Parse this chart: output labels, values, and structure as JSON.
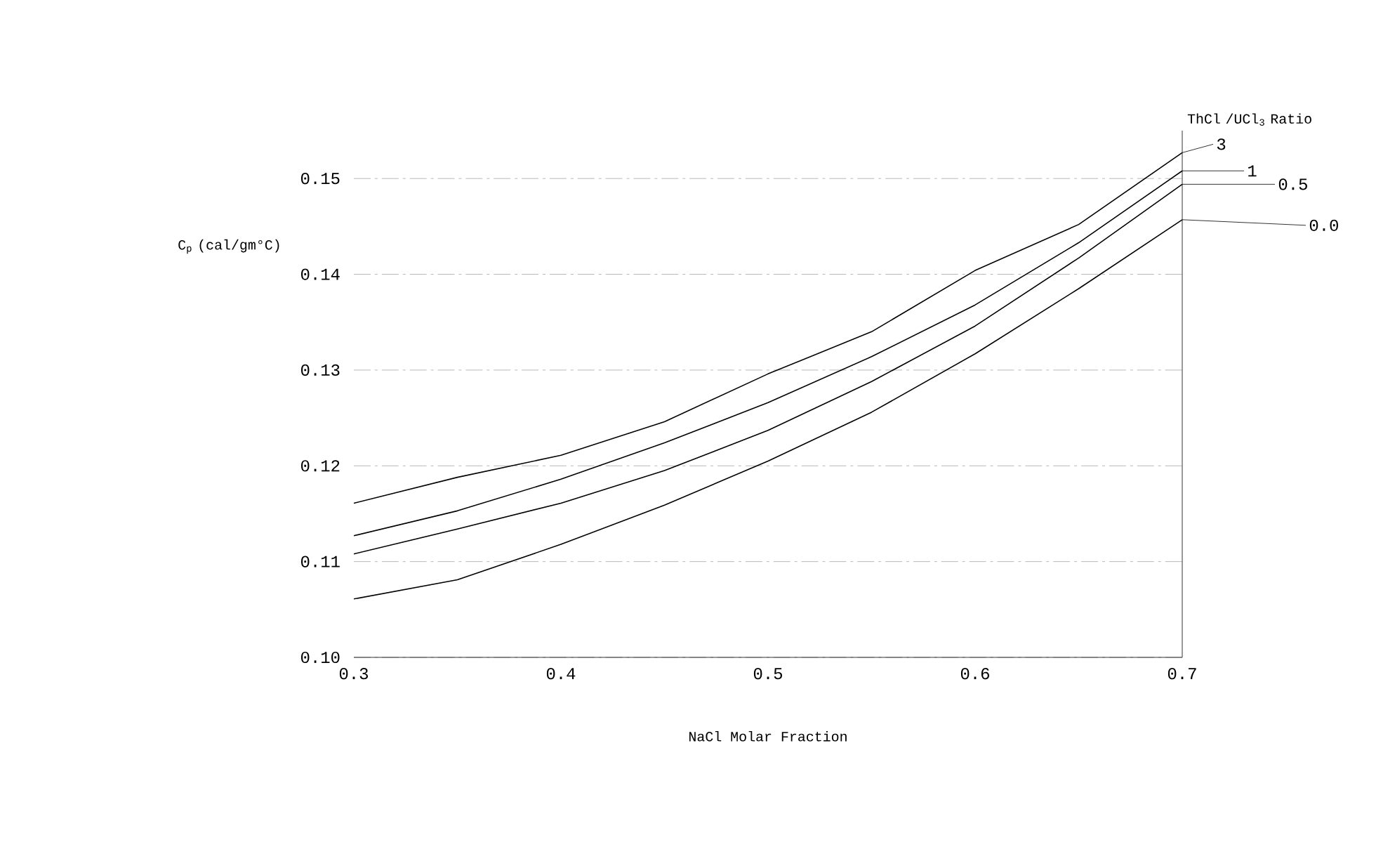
{
  "chart_data": {
    "type": "line",
    "xlabel": "NaCl Molar Fraction",
    "ylabel": "C$_{p}$ (cal/gm°C)",
    "legend_title": "ThCl /UCl$_{3}$ Ratio",
    "x": [
      0.3,
      0.35,
      0.4,
      0.45,
      0.5,
      0.55,
      0.6,
      0.65,
      0.7
    ],
    "series": [
      {
        "name": "3",
        "color": "#000000",
        "values": [
          0.1161,
          0.1188,
          0.1211,
          0.1246,
          0.1296,
          0.134,
          0.1404,
          0.1452,
          0.1527
        ]
      },
      {
        "name": "1",
        "color": "#000000",
        "values": [
          0.1127,
          0.1153,
          0.1186,
          0.1224,
          0.1266,
          0.1314,
          0.1368,
          0.1433,
          0.1508
        ]
      },
      {
        "name": "0.5",
        "color": "#000000",
        "values": [
          0.1108,
          0.1134,
          0.1161,
          0.1195,
          0.1237,
          0.1288,
          0.1346,
          0.1417,
          0.1494
        ]
      },
      {
        "name": "0.0",
        "color": "#000000",
        "values": [
          0.1061,
          0.1081,
          0.1118,
          0.1159,
          0.1205,
          0.1256,
          0.1317,
          0.1385,
          0.1457
        ]
      }
    ],
    "xlim": [
      0.3,
      0.7
    ],
    "ylim": [
      0.1,
      0.155
    ],
    "xticks": [
      0.3,
      0.4,
      0.5,
      0.6,
      0.7
    ],
    "yticks": [
      {
        "value": 0.1,
        "label": "0.10"
      },
      0.11,
      0.12,
      0.13,
      0.14,
      0.15
    ],
    "legend": "right",
    "grid": "y",
    "marker": "none",
    "line_style": "solid"
  }
}
